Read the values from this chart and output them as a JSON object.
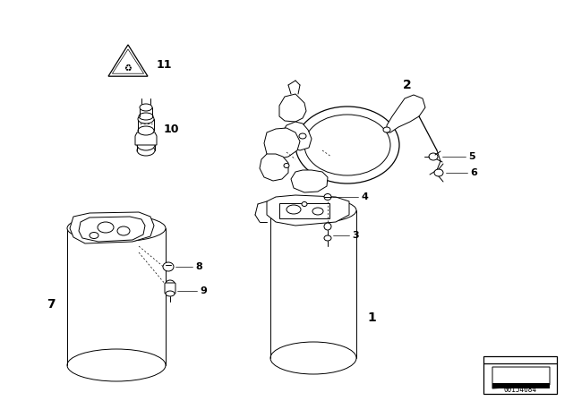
{
  "background_color": "#ffffff",
  "line_color": "#000000",
  "watermark_text": "00154684",
  "figsize": [
    6.4,
    4.48
  ],
  "dpi": 100
}
